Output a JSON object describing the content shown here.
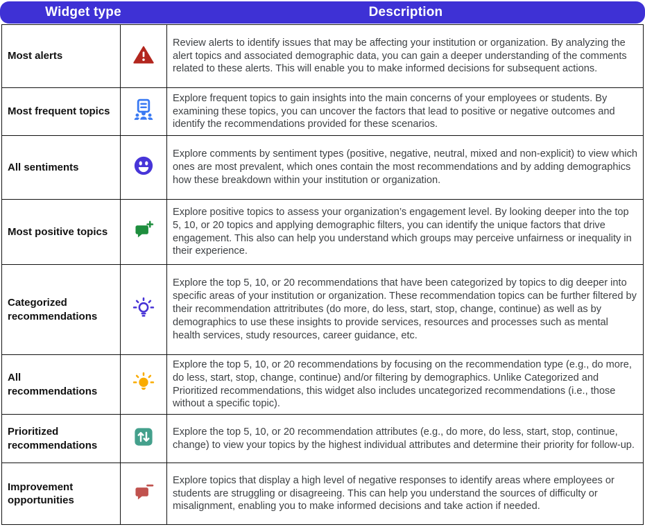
{
  "colors": {
    "header_bg": "#3e31d5",
    "header_text": "#ffffff",
    "border": "#111111",
    "name_text": "#111111",
    "description_text": "#3d4043"
  },
  "table": {
    "headers": [
      "Widget type",
      "Description"
    ],
    "rows": [
      {
        "name": "Most alerts",
        "icon": "alert-triangle-icon",
        "icon_color": "#b3261e",
        "description": "Review alerts to identify issues that may be affecting your institution or organization. By analyzing the alert topics and associated demographic data, you can gain a deeper understanding of the comments related to these alerts. This will enable you to make informed decisions for subsequent actions."
      },
      {
        "name": "Most frequent topics",
        "icon": "presentation-audience-icon",
        "icon_color": "#3a7af3",
        "description": "Explore frequent topics to gain insights into the main concerns of your employees or students. By examining these topics, you can uncover the factors that lead to positive or negative outcomes and identify the recommendations provided for these scenarios."
      },
      {
        "name": "All sentiments",
        "icon": "smiley-face-icon",
        "icon_color": "#4735d8",
        "description": "Explore comments by sentiment types (positive, negative, neutral, mixed and non-explicit) to view which ones are most prevalent, which ones contain the most recommendations and by adding demographics how these breakdown within your institution or organization."
      },
      {
        "name": "Most positive topics",
        "icon": "comment-plus-icon",
        "icon_color": "#1e8e3e",
        "description": "Explore positive topics to assess your organization’s engagement level. By looking deeper into the top 5, 10, or 20 topics and applying demographic filters, you can identify the unique factors that drive engagement. This also can help you understand which groups may perceive unfairness or inequality in their experience."
      },
      {
        "name": "Categorized recommendations",
        "icon": "lightbulb-outline-icon",
        "icon_color": "#4733d6",
        "description": "Explore the top 5, 10, or 20 recommendations that have been categorized by topics to dig deeper into specific areas of your institution or organization. These recommendation topics can be further filtered by their recommendation attritributes (do more, do less, start, stop, change, continue) as well as by demographics to use these insights to provide services, resources and processes such as mental health services, study resources, career guidance, etc."
      },
      {
        "name": "All recommendations",
        "icon": "lightbulb-filled-icon",
        "icon_color": "#f9ab00",
        "description": "Explore the top 5, 10, or 20 recommendations by focusing on the recommendation type (e.g., do more, do less, start, stop, change, continue) and/or filtering by demographics. Unlike Categorized and Prioritized recommendations, this widget also includes uncategorized recommendations (i.e., those without a specific topic)."
      },
      {
        "name": "Prioritized recommendations",
        "icon": "up-down-arrows-icon",
        "icon_color": "#44a08c",
        "description": "Explore the top 5, 10, or 20 recommendation attributes (e.g., do more, do less, start, stop, continue, change) to view your topics by the highest individual attributes and determine their priority for follow-up."
      },
      {
        "name": "Improvement opportunities",
        "icon": "comment-minus-icon",
        "icon_color": "#c0524e",
        "description": "Explore topics that display a high level of negative responses to identify areas where employees or students are struggling or disagreeing. This can help you understand the sources of difficulty or misalignment, enabling you to make informed decisions and take action if needed."
      }
    ]
  }
}
